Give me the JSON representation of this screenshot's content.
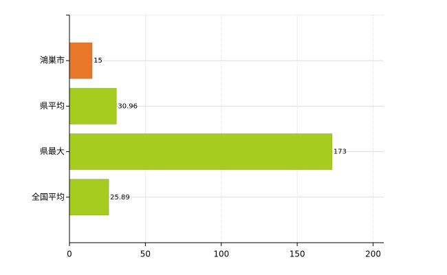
{
  "chart_data": {
    "type": "bar",
    "orientation": "horizontal",
    "categories": [
      "鴻巣市",
      "県平均",
      "県最大",
      "全国平均"
    ],
    "values": [
      15,
      30.96,
      173,
      25.89
    ],
    "colors": [
      "#e8772a",
      "#a6cc1f",
      "#a6cc1f",
      "#a6cc1f"
    ],
    "xlim": [
      0,
      207
    ],
    "xticks": [
      0,
      50,
      100,
      150,
      200
    ],
    "grid": true
  }
}
